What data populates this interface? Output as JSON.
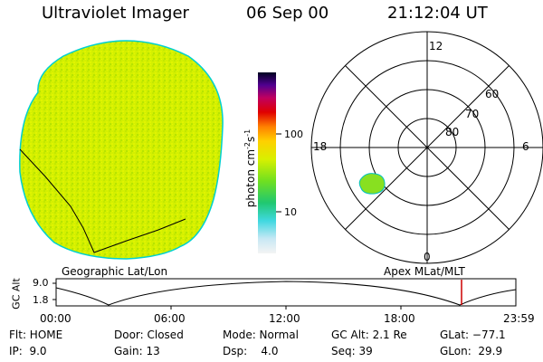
{
  "header": {
    "instrument": "Ultraviolet Imager",
    "date": "06 Sep 00",
    "time": "21:12:04 UT"
  },
  "colorbar": {
    "label_main": "photon cm",
    "label_exp1": "-2",
    "label_mid": "s",
    "label_exp2": "-1",
    "ticks": [
      "100",
      "10"
    ]
  },
  "polar": {
    "mlt_labels": {
      "top": "12",
      "right": "6",
      "bottom": "0",
      "left": "18"
    },
    "lat_labels": [
      "60",
      "70",
      "80"
    ]
  },
  "projections": {
    "left": "Geographic Lat/Lon",
    "right": "Apex MLat/MLT"
  },
  "altitude_plot": {
    "ylabel": "GC Alt",
    "yticks": [
      "9.0",
      "1.8"
    ],
    "xticks": [
      "00:00",
      "06:00",
      "12:00",
      "18:00",
      "23:59"
    ]
  },
  "status": {
    "row1": {
      "flt": "Flt: HOME",
      "door": "Door: Closed",
      "mode": "Mode: Normal",
      "gcalt": "GC Alt: 2.1 Re",
      "glat": "GLat: −77.1"
    },
    "row2": {
      "ip": "IP:  9.0",
      "gain": "Gain: 13",
      "dsp": "Dsp:    4.0",
      "seq": "Seq: 39",
      "glon": "GLon:  29.9"
    }
  },
  "colors": {
    "disk_fill": "#d4f000",
    "disk_edge": "#00d0d0",
    "blob_fill": "#88e020",
    "marker": "#cc0000"
  }
}
